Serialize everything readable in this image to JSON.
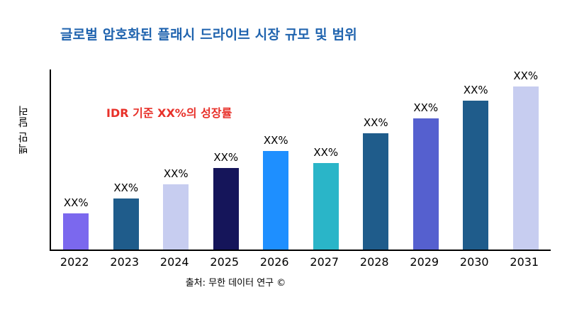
{
  "header": {
    "title": "글로벌 암호화된 플래시 드라이브 시장 규모 및 범위",
    "title_color": "#1f63ae"
  },
  "annotation": {
    "text": "IDR 기준 XX%의 성장률",
    "color": "#e8312a"
  },
  "axes": {
    "y_label": "백만 달러"
  },
  "footer": {
    "source": "출처: 무한 데이터 연구 ©"
  },
  "chart_data": {
    "type": "bar",
    "title": "글로벌 암호화된 플래시 드라이브 시장 규모 및 범위",
    "categories": [
      "2022",
      "2023",
      "2024",
      "2025",
      "2026",
      "2027",
      "2028",
      "2029",
      "2030",
      "2031"
    ],
    "values": [
      22,
      31,
      40,
      50,
      60,
      53,
      71,
      80,
      91,
      100
    ],
    "bar_labels": [
      "XX%",
      "XX%",
      "XX%",
      "XX%",
      "XX%",
      "XX%",
      "XX%",
      "XX%",
      "XX%",
      "XX%"
    ],
    "bar_colors": [
      "#7b68ee",
      "#1f5c8b",
      "#c7cdf0",
      "#15155a",
      "#1e8fff",
      "#2ab5c8",
      "#1f5c8b",
      "#5560cf",
      "#1f5c8b",
      "#c7cdf0"
    ],
    "xlabel": "",
    "ylabel": "백만 달러",
    "ylim": [
      0,
      110
    ],
    "grid": false,
    "legend": "none",
    "annotation": "IDR 기준 XX%의 성장률",
    "source": "출처: 무한 데이터 연구 ©"
  }
}
